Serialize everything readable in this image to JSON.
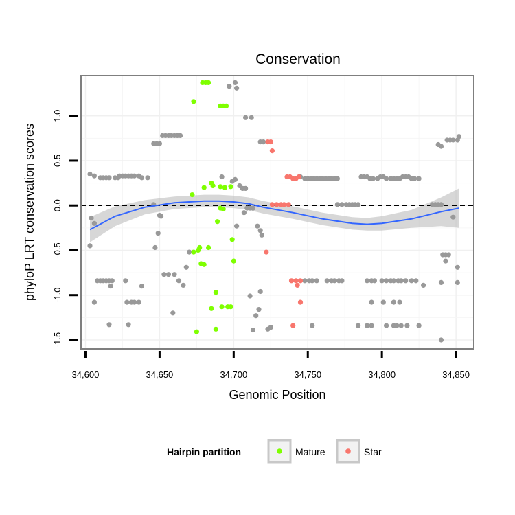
{
  "chart_data": {
    "type": "scatter",
    "title": "Conservation",
    "xlabel": "Genomic Position",
    "ylabel": "phyloP LRT conservation scores",
    "xlim": [
      34597,
      34862
    ],
    "ylim": [
      -1.6,
      1.45
    ],
    "x_ticks": [
      34600,
      34650,
      34700,
      34750,
      34800,
      34850
    ],
    "x_tick_labels": [
      "34,600",
      "34,650",
      "34,700",
      "34,750",
      "34,800",
      "34,850"
    ],
    "y_ticks": [
      -1.5,
      -1.0,
      -0.5,
      0.0,
      0.5,
      1.0
    ],
    "y_tick_labels": [
      "-1.5",
      "-1.0",
      "-0.5",
      "0.0",
      "0.5",
      "1.0"
    ],
    "grid": true,
    "reference_line": {
      "y": 0,
      "style": "dashed"
    },
    "legend": {
      "title": "Hairpin partition",
      "placement": "bottom",
      "entries": [
        {
          "label": "Mature",
          "color": "#7FFF00"
        },
        {
          "label": "Star",
          "color": "#F8766D"
        }
      ]
    },
    "colors": {
      "other": "#999999",
      "Mature": "#7FFF00",
      "Star": "#F8766D",
      "smooth": "#3366FF",
      "band": "#bdbdbd"
    },
    "smooth_line": {
      "x": [
        34603,
        34620,
        34640,
        34660,
        34680,
        34690,
        34700,
        34710,
        34720,
        34740,
        34760,
        34780,
        34790,
        34800,
        34820,
        34840,
        34852
      ],
      "y": [
        -0.27,
        -0.12,
        -0.02,
        0.03,
        0.05,
        0.05,
        0.04,
        0.02,
        -0.02,
        -0.08,
        -0.15,
        -0.2,
        -0.21,
        -0.2,
        -0.15,
        -0.07,
        -0.03
      ],
      "se": [
        0.14,
        0.11,
        0.08,
        0.07,
        0.07,
        0.07,
        0.07,
        0.07,
        0.07,
        0.07,
        0.07,
        0.07,
        0.07,
        0.08,
        0.1,
        0.16,
        0.22
      ]
    },
    "series": [
      {
        "name": "Mature",
        "points": [
          [
            34673,
            1.16
          ],
          [
            34679,
            1.37
          ],
          [
            34681,
            1.37
          ],
          [
            34683,
            1.37
          ],
          [
            34691,
            1.11
          ],
          [
            34693,
            1.11
          ],
          [
            34695,
            1.11
          ],
          [
            34680,
            0.2
          ],
          [
            34685,
            0.25
          ],
          [
            34686,
            0.22
          ],
          [
            34694,
            0.2
          ],
          [
            34691,
            0.21
          ],
          [
            34698,
            0.21
          ],
          [
            34672,
            0.12
          ],
          [
            34691,
            -0.03
          ],
          [
            34693,
            -0.04
          ],
          [
            34689,
            -0.18
          ],
          [
            34699,
            -0.38
          ],
          [
            34673,
            -0.52
          ],
          [
            34676,
            -0.5
          ],
          [
            34677,
            -0.47
          ],
          [
            34683,
            -0.47
          ],
          [
            34678,
            -0.65
          ],
          [
            34680,
            -0.66
          ],
          [
            34700,
            -0.62
          ],
          [
            34688,
            -0.97
          ],
          [
            34692,
            -1.13
          ],
          [
            34696,
            -1.13
          ],
          [
            34698,
            -1.13
          ],
          [
            34685,
            -1.15
          ],
          [
            34688,
            -1.38
          ],
          [
            34675,
            -1.41
          ]
        ]
      },
      {
        "name": "Star",
        "points": [
          [
            34723,
            0.71
          ],
          [
            34725,
            0.71
          ],
          [
            34726,
            0.61
          ],
          [
            34736,
            0.32
          ],
          [
            34738,
            0.32
          ],
          [
            34740,
            0.3
          ],
          [
            34742,
            0.3
          ],
          [
            34744,
            0.32
          ],
          [
            34726,
            0.01
          ],
          [
            34729,
            0.01
          ],
          [
            34732,
            0.01
          ],
          [
            34734,
            0.01
          ],
          [
            34737,
            0.01
          ],
          [
            34722,
            -0.52
          ],
          [
            34739,
            -0.84
          ],
          [
            34742,
            -0.84
          ],
          [
            34745,
            -0.84
          ],
          [
            34743,
            -0.89
          ],
          [
            34745,
            -1.08
          ],
          [
            34740,
            -1.34
          ]
        ]
      },
      {
        "name": "other",
        "points": [
          [
            34603,
            0.35
          ],
          [
            34606,
            0.33
          ],
          [
            34610,
            0.31
          ],
          [
            34612,
            0.31
          ],
          [
            34614,
            0.31
          ],
          [
            34616,
            0.31
          ],
          [
            34620,
            0.31
          ],
          [
            34622,
            0.31
          ],
          [
            34623,
            0.33
          ],
          [
            34625,
            0.33
          ],
          [
            34627,
            0.33
          ],
          [
            34629,
            0.33
          ],
          [
            34631,
            0.33
          ],
          [
            34633,
            0.33
          ],
          [
            34636,
            0.33
          ],
          [
            34638,
            0.31
          ],
          [
            34642,
            0.31
          ],
          [
            34646,
            0.69
          ],
          [
            34648,
            0.69
          ],
          [
            34650,
            0.69
          ],
          [
            34652,
            0.78
          ],
          [
            34654,
            0.78
          ],
          [
            34656,
            0.78
          ],
          [
            34658,
            0.78
          ],
          [
            34660,
            0.78
          ],
          [
            34662,
            0.78
          ],
          [
            34664,
            0.78
          ],
          [
            34646,
            0.01
          ],
          [
            34649,
            -0.31
          ],
          [
            34650,
            -0.11
          ],
          [
            34651,
            -0.12
          ],
          [
            34603,
            -0.45
          ],
          [
            34604,
            -0.14
          ],
          [
            34606,
            -0.2
          ],
          [
            34606,
            -1.08
          ],
          [
            34608,
            -0.84
          ],
          [
            34610,
            -0.84
          ],
          [
            34612,
            -0.84
          ],
          [
            34614,
            -0.84
          ],
          [
            34616,
            -0.84
          ],
          [
            34618,
            -0.84
          ],
          [
            34617,
            -0.9
          ],
          [
            34616,
            -1.33
          ],
          [
            34627,
            -0.84
          ],
          [
            34628,
            -1.08
          ],
          [
            34631,
            -1.08
          ],
          [
            34633,
            -1.08
          ],
          [
            34636,
            -1.08
          ],
          [
            34638,
            -0.9
          ],
          [
            34629,
            -1.33
          ],
          [
            34647,
            -0.47
          ],
          [
            34653,
            -0.77
          ],
          [
            34656,
            -0.77
          ],
          [
            34660,
            -0.77
          ],
          [
            34663,
            -0.84
          ],
          [
            34666,
            -0.89
          ],
          [
            34668,
            -0.69
          ],
          [
            34670,
            -0.52
          ],
          [
            34659,
            -1.2
          ],
          [
            34697,
            1.33
          ],
          [
            34701,
            1.37
          ],
          [
            34702,
            1.31
          ],
          [
            34708,
            0.98
          ],
          [
            34712,
            0.98
          ],
          [
            34718,
            0.71
          ],
          [
            34720,
            0.71
          ],
          [
            34692,
            0.32
          ],
          [
            34699,
            0.27
          ],
          [
            34701,
            0.29
          ],
          [
            34704,
            0.22
          ],
          [
            34706,
            0.19
          ],
          [
            34708,
            0.19
          ],
          [
            34702,
            -0.23
          ],
          [
            34707,
            -0.08
          ],
          [
            34709,
            -0.03
          ],
          [
            34711,
            -0.03
          ],
          [
            34713,
            -0.03
          ],
          [
            34716,
            -0.23
          ],
          [
            34711,
            -1.01
          ],
          [
            34715,
            -1.23
          ],
          [
            34717,
            -1.16
          ],
          [
            34718,
            -0.96
          ],
          [
            34713,
            -1.39
          ],
          [
            34723,
            -1.38
          ],
          [
            34725,
            -1.36
          ],
          [
            34719,
            -0.33
          ],
          [
            34718,
            -0.28
          ],
          [
            34745,
            0.32
          ],
          [
            34748,
            0.3
          ],
          [
            34750,
            0.3
          ],
          [
            34752,
            0.3
          ],
          [
            34754,
            0.3
          ],
          [
            34756,
            0.3
          ],
          [
            34758,
            0.3
          ],
          [
            34760,
            0.3
          ],
          [
            34762,
            0.3
          ],
          [
            34764,
            0.3
          ],
          [
            34766,
            0.3
          ],
          [
            34768,
            0.3
          ],
          [
            34770,
            0.3
          ],
          [
            34770,
            0.01
          ],
          [
            34773,
            0.01
          ],
          [
            34776,
            0.01
          ],
          [
            34778,
            0.01
          ],
          [
            34780,
            0.01
          ],
          [
            34782,
            0.01
          ],
          [
            34784,
            0.01
          ],
          [
            34786,
            0.32
          ],
          [
            34788,
            0.32
          ],
          [
            34790,
            0.32
          ],
          [
            34792,
            0.3
          ],
          [
            34794,
            0.3
          ],
          [
            34797,
            0.3
          ],
          [
            34799,
            0.32
          ],
          [
            34801,
            0.32
          ],
          [
            34803,
            0.3
          ],
          [
            34806,
            0.3
          ],
          [
            34808,
            0.3
          ],
          [
            34810,
            0.3
          ],
          [
            34812,
            0.3
          ],
          [
            34814,
            0.32
          ],
          [
            34816,
            0.32
          ],
          [
            34818,
            0.32
          ],
          [
            34820,
            0.3
          ],
          [
            34822,
            0.3
          ],
          [
            34825,
            0.3
          ],
          [
            34748,
            -0.84
          ],
          [
            34751,
            -0.84
          ],
          [
            34753,
            -0.84
          ],
          [
            34756,
            -0.84
          ],
          [
            34763,
            -0.84
          ],
          [
            34766,
            -0.84
          ],
          [
            34768,
            -0.84
          ],
          [
            34771,
            -0.84
          ],
          [
            34773,
            -0.84
          ],
          [
            34790,
            -0.84
          ],
          [
            34793,
            -0.84
          ],
          [
            34795,
            -0.84
          ],
          [
            34800,
            -0.84
          ],
          [
            34803,
            -0.84
          ],
          [
            34806,
            -0.84
          ],
          [
            34808,
            -0.84
          ],
          [
            34811,
            -0.84
          ],
          [
            34813,
            -0.84
          ],
          [
            34816,
            -0.84
          ],
          [
            34820,
            -0.84
          ],
          [
            34823,
            -0.84
          ],
          [
            34793,
            -1.08
          ],
          [
            34801,
            -1.08
          ],
          [
            34808,
            -1.08
          ],
          [
            34812,
            -1.08
          ],
          [
            34753,
            -1.34
          ],
          [
            34784,
            -1.34
          ],
          [
            34790,
            -1.34
          ],
          [
            34793,
            -1.34
          ],
          [
            34803,
            -1.34
          ],
          [
            34808,
            -1.34
          ],
          [
            34810,
            -1.34
          ],
          [
            34813,
            -1.34
          ],
          [
            34817,
            -1.34
          ],
          [
            34825,
            -1.34
          ],
          [
            34828,
            -0.89
          ],
          [
            34838,
            0.68
          ],
          [
            34840,
            0.66
          ],
          [
            34844,
            0.73
          ],
          [
            34846,
            0.73
          ],
          [
            34848,
            0.73
          ],
          [
            34851,
            0.73
          ],
          [
            34852,
            0.77
          ],
          [
            34834,
            0.01
          ],
          [
            34836,
            0.01
          ],
          [
            34838,
            0.01
          ],
          [
            34840,
            0.01
          ],
          [
            34841,
            -0.55
          ],
          [
            34843,
            -0.55
          ],
          [
            34845,
            -0.55
          ],
          [
            34843,
            -0.62
          ],
          [
            34848,
            -0.13
          ],
          [
            34851,
            -0.69
          ],
          [
            34851,
            -0.86
          ],
          [
            34840,
            -0.86
          ],
          [
            34840,
            -1.5
          ]
        ]
      }
    ]
  }
}
